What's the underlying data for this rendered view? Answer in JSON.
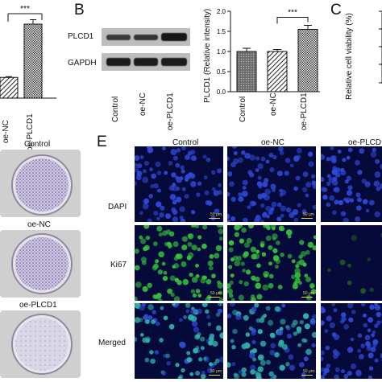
{
  "panels": {
    "A": {
      "significance": "***",
      "xtick_labels": [
        "oe-NC",
        "oe-PLCD1"
      ]
    },
    "B": {
      "letter": "B",
      "blot_labels": [
        "PLCD1",
        "GAPDH"
      ],
      "lane_labels": [
        "Control",
        "oe-NC",
        "oe-PLCD1"
      ],
      "chart_ylabel": "PLCD1 (Relative intensity)",
      "significance": "***"
    },
    "C": {
      "letter": "C",
      "ylabel": "Relative cell viability (%)"
    },
    "D": {
      "dish_labels": [
        "Control",
        "oe-NC",
        "oe-PLCD1"
      ]
    },
    "E": {
      "letter": "E",
      "columns": [
        "Control",
        "oe-NC",
        "oe-PLCD"
      ],
      "rows": [
        "DAPI",
        "Ki67",
        "Merged"
      ],
      "scale_label": "50 μm"
    }
  },
  "chart_data": [
    {
      "type": "bar",
      "panel": "A",
      "categories": [
        "oe-NC",
        "oe-PLCD1"
      ],
      "values": [
        0.28,
        1.0
      ],
      "errors": [
        0.01,
        0.06
      ],
      "significance": "***"
    },
    {
      "type": "bar",
      "panel": "B",
      "categories": [
        "Control",
        "oe-NC",
        "oe-PLCD1"
      ],
      "values": [
        1.0,
        1.0,
        1.55
      ],
      "errors": [
        0.08,
        0.05,
        0.1
      ],
      "ylim": [
        0,
        2.0
      ],
      "yticks": [
        0,
        0.5,
        1.0,
        1.5,
        2.0
      ],
      "ylabel": "PLCD1 (Relative intensity)",
      "significance": "***"
    },
    {
      "type": "bar",
      "panel": "C",
      "ylabel": "Relative cell viability (%)"
    }
  ],
  "colors": {
    "nuclei_blue": "#2f48d6",
    "ki67_green": "#35c23a",
    "background_dark": "#050a3a",
    "scale_bar": "#e8d13a"
  }
}
